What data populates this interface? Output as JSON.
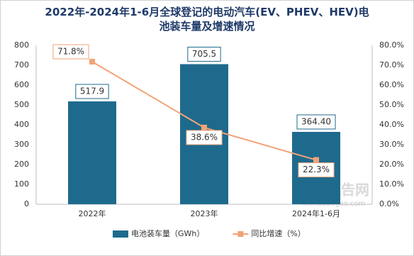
{
  "chart_data": {
    "type": "bar-line",
    "title": "2022年-2024年1-6月全球登记的电动汽车(EV、PHEV、HEV)电池装车量及增速情况",
    "categories": [
      "2022年",
      "2023年",
      "2024年1-6月"
    ],
    "series": [
      {
        "name": "电池装车量（GWh）",
        "type": "bar",
        "color": "#1e6a8d",
        "values": [
          517.9,
          705.5,
          364.4
        ],
        "value_labels": [
          "517.9",
          "705.5",
          "364.40"
        ]
      },
      {
        "name": "同比增速（%）",
        "type": "line",
        "axis": "y2",
        "color": "#f2a378",
        "values": [
          71.8,
          38.6,
          22.3
        ],
        "value_labels": [
          "71.8%",
          "38.6%",
          "22.3%"
        ]
      }
    ],
    "ylim": [
      0,
      800
    ],
    "yticks": [
      0,
      100,
      200,
      300,
      400,
      500,
      600,
      700,
      800
    ],
    "y2lim": [
      0,
      80
    ],
    "y2ticks": [
      {
        "value": 0,
        "label": "0.0%"
      },
      {
        "value": 10,
        "label": "10.0%"
      },
      {
        "value": 20,
        "label": "20.0%"
      },
      {
        "value": 30,
        "label": "30.0%"
      },
      {
        "value": 40,
        "label": "40.0%"
      },
      {
        "value": 50,
        "label": "50.0%"
      },
      {
        "value": 60,
        "label": "60.0%"
      },
      {
        "value": 70,
        "label": "70.0%"
      },
      {
        "value": 80,
        "label": "80.0%"
      }
    ],
    "watermark": [
      "观研报告网",
      "chinabaogao.com"
    ]
  }
}
